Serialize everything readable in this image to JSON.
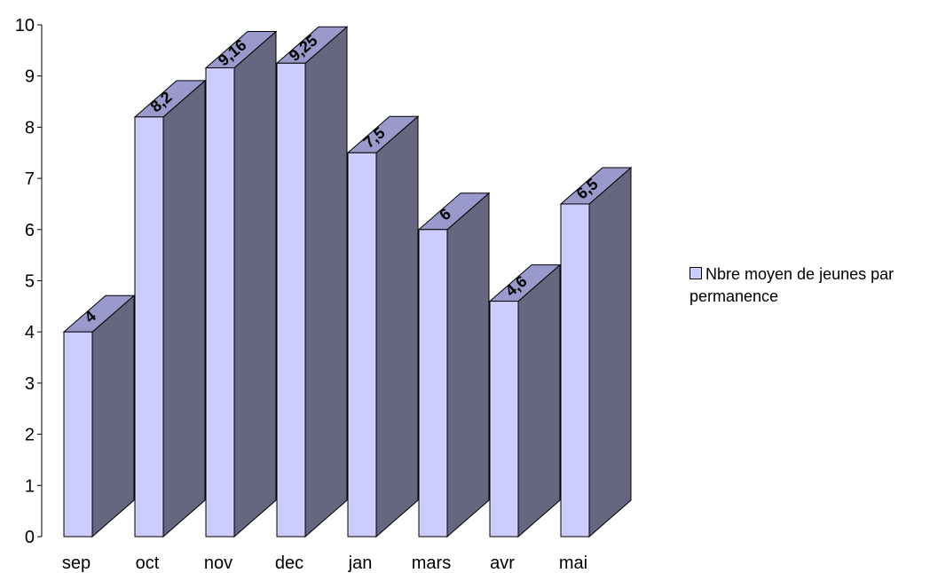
{
  "chart_data": {
    "type": "bar",
    "categories": [
      "sep",
      "oct",
      "nov",
      "dec",
      "jan",
      "mars",
      "avr",
      "mai"
    ],
    "series": [
      {
        "name": "Nbre moyen de jeunes par permanence",
        "values": [
          4,
          8.2,
          9.16,
          9.25,
          7.5,
          6,
          4.6,
          6.5
        ],
        "data_labels": [
          "4",
          "8,2",
          "9,16",
          "9,25",
          "7,5",
          "6",
          "4,6",
          "6,5"
        ]
      }
    ],
    "ylim": [
      0,
      10
    ],
    "yticks": [
      "0",
      "1",
      "2",
      "3",
      "4",
      "5",
      "6",
      "7",
      "8",
      "9",
      "10"
    ],
    "style": "3d-column",
    "grid": false,
    "legend_position": "right",
    "colors": {
      "front": "#ccccff",
      "side": "#666680",
      "top": "#9999cc",
      "edge": "#000000"
    }
  }
}
